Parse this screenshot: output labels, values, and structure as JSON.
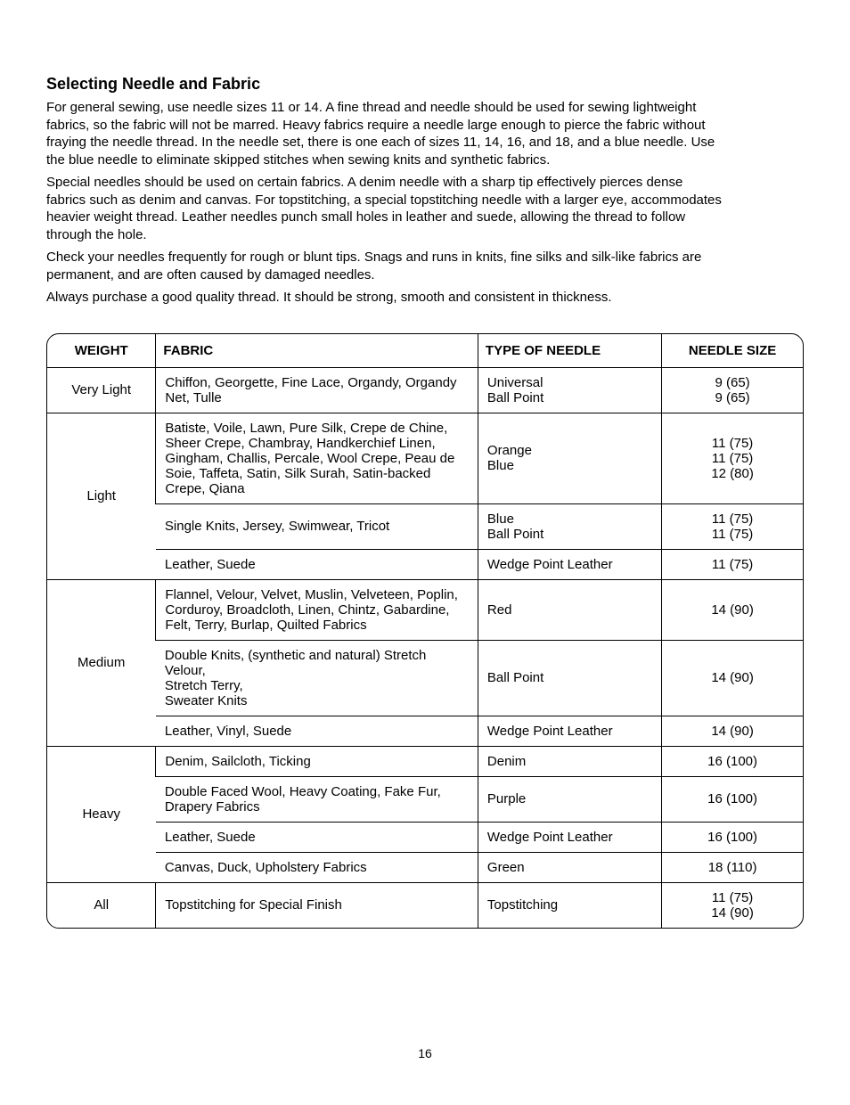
{
  "heading": "Selecting Needle and Fabric",
  "paragraphs": [
    "For general sewing, use needle sizes 11 or 14.  A fine thread and needle should be used for sewing lightweight fabrics, so the fabric will not be marred. Heavy fabrics require a needle large enough to pierce the fabric without fraying the needle thread. In the needle set, there is one each of sizes 11, 14, 16, and 18, and a blue needle. Use the blue needle to eliminate skipped stitches when sewing knits and synthetic fabrics.",
    "Special needles should be used on certain fabrics.  A denim needle with a sharp tip effectively pierces dense fabrics such as denim and canvas. For topstitching, a special topstitching needle with a larger eye, accommodates heavier weight thread. Leather needles punch small holes in leather and suede, allowing the thread to follow through the hole.",
    "Check your needles frequently for rough or blunt tips.  Snags and runs in knits, fine silks and silk-like fabrics are permanent, and are often caused by damaged needles.",
    "Always purchase a good quality thread. It should be strong, smooth and consistent in thickness."
  ],
  "table": {
    "headers": [
      "WEIGHT",
      "FABRIC",
      "TYPE OF NEEDLE",
      "NEEDLE SIZE"
    ],
    "groups": [
      {
        "weight": "Very Light",
        "rows": [
          {
            "fabric": "Chiffon, Georgette, Fine Lace, Organdy, Organdy Net, Tulle",
            "type": "Universal\nBall Point",
            "size": "9 (65)\n9 (65)"
          }
        ]
      },
      {
        "weight": "Light",
        "rows": [
          {
            "fabric": "Batiste, Voile, Lawn, Pure Silk, Crepe de Chine, Sheer Crepe, Chambray, Handkerchief Linen, Gingham, Challis, Percale, Wool Crepe, Peau de Soie, Taffeta, Satin, Silk Surah, Satin-backed Crepe, Qiana",
            "type": "Orange\nBlue",
            "size": "11 (75)\n11 (75)\n12 (80)"
          },
          {
            "fabric": "Single Knits, Jersey, Swimwear, Tricot",
            "type": "Blue\nBall Point",
            "size": "11 (75)\n11 (75)"
          },
          {
            "fabric": "Leather, Suede",
            "type": "Wedge Point Leather",
            "size": "11 (75)"
          }
        ]
      },
      {
        "weight": "Medium",
        "rows": [
          {
            "fabric": "Flannel, Velour, Velvet, Muslin, Velveteen, Poplin, Corduroy, Broadcloth, Linen, Chintz, Gabardine, Felt, Terry, Burlap, Quilted Fabrics",
            "type": "Red",
            "size": "14 (90)"
          },
          {
            "fabric": "Double Knits, (synthetic and natural) Stretch Velour,\nStretch Terry,\nSweater Knits",
            "type": "Ball Point",
            "size": "14 (90)"
          },
          {
            "fabric": "Leather, Vinyl, Suede",
            "type": "Wedge Point Leather",
            "size": "14 (90)"
          }
        ]
      },
      {
        "weight": "Heavy",
        "rows": [
          {
            "fabric": "Denim, Sailcloth, Ticking",
            "type": "Denim",
            "size": "16 (100)"
          },
          {
            "fabric": "Double Faced Wool, Heavy Coating, Fake Fur, Drapery Fabrics",
            "type": "Purple",
            "size": "16 (100)"
          },
          {
            "fabric": "Leather, Suede",
            "type": "Wedge Point Leather",
            "size": "16 (100)"
          },
          {
            "fabric": "Canvas, Duck, Upholstery Fabrics",
            "type": "Green",
            "size": "18 (110)"
          }
        ]
      },
      {
        "weight": "All",
        "rows": [
          {
            "fabric": "Topstitching for Special Finish",
            "type": "Topstitching",
            "size": "11 (75)\n14 (90)"
          }
        ]
      }
    ]
  },
  "pageNumber": "16"
}
